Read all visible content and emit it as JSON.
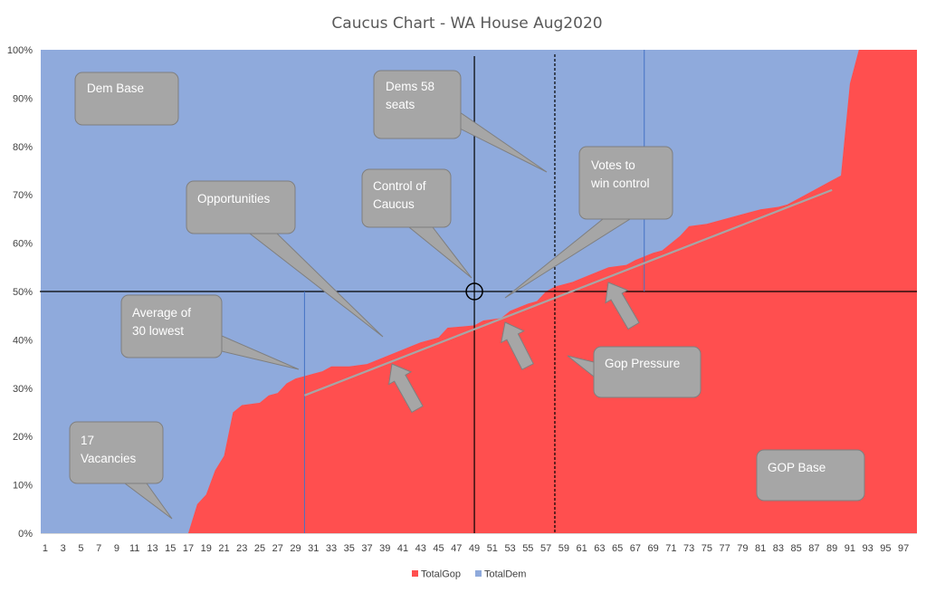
{
  "chart_data": {
    "type": "area",
    "title": "Caucus Chart - WA House Aug2020",
    "xlabel": "",
    "ylabel": "",
    "x_range": [
      1,
      98
    ],
    "ylim": [
      0,
      100
    ],
    "y_ticks": [
      "0%",
      "10%",
      "20%",
      "30%",
      "40%",
      "50%",
      "60%",
      "70%",
      "80%",
      "90%",
      "100%"
    ],
    "x_ticks": [
      "1",
      "3",
      "5",
      "7",
      "9",
      "11",
      "13",
      "15",
      "17",
      "19",
      "21",
      "23",
      "25",
      "27",
      "29",
      "31",
      "33",
      "35",
      "37",
      "39",
      "41",
      "43",
      "45",
      "47",
      "49",
      "51",
      "53",
      "55",
      "57",
      "59",
      "61",
      "63",
      "65",
      "67",
      "69",
      "71",
      "73",
      "75",
      "77",
      "79",
      "81",
      "83",
      "85",
      "87",
      "89",
      "91",
      "93",
      "95",
      "97"
    ],
    "stacked_to": 100,
    "series": [
      {
        "name": "TotalGop",
        "color": "#ff4f4f",
        "points": [
          [
            1,
            0
          ],
          [
            17,
            0
          ],
          [
            18,
            6
          ],
          [
            19,
            8
          ],
          [
            20,
            13
          ],
          [
            21,
            16
          ],
          [
            22,
            25
          ],
          [
            23,
            26.5
          ],
          [
            25,
            27
          ],
          [
            26,
            28.5
          ],
          [
            27,
            29
          ],
          [
            28,
            31
          ],
          [
            29,
            32
          ],
          [
            30,
            32.5
          ],
          [
            31,
            33
          ],
          [
            32,
            33.5
          ],
          [
            33,
            34.5
          ],
          [
            35,
            34.5
          ],
          [
            37,
            35
          ],
          [
            39,
            36.5
          ],
          [
            41,
            38
          ],
          [
            43,
            39.5
          ],
          [
            45,
            40.5
          ],
          [
            46,
            42.5
          ],
          [
            49,
            43
          ],
          [
            50,
            44
          ],
          [
            52,
            44.5
          ],
          [
            53,
            46
          ],
          [
            55,
            47.5
          ],
          [
            56,
            48
          ],
          [
            57,
            50
          ],
          [
            58,
            51
          ],
          [
            60,
            52
          ],
          [
            62,
            53.5
          ],
          [
            64,
            55
          ],
          [
            66,
            55.5
          ],
          [
            67,
            56.5
          ],
          [
            69,
            58
          ],
          [
            70,
            58.5
          ],
          [
            71,
            60
          ],
          [
            72,
            61.5
          ],
          [
            73,
            63.5
          ],
          [
            75,
            64
          ],
          [
            77,
            65
          ],
          [
            79,
            66
          ],
          [
            81,
            67
          ],
          [
            83,
            67.5
          ],
          [
            84,
            68
          ],
          [
            86,
            70
          ],
          [
            88,
            72
          ],
          [
            89,
            73
          ],
          [
            90,
            74
          ],
          [
            91,
            93
          ],
          [
            92,
            100
          ],
          [
            98,
            100
          ]
        ]
      },
      {
        "name": "TotalDem",
        "color": "#8faadc",
        "fill_to": 100
      }
    ],
    "reference_lines": [
      {
        "axis": "y",
        "value": 50
      },
      {
        "axis": "x",
        "value": 49
      },
      {
        "axis": "x",
        "value": 58,
        "style": "dashed"
      },
      {
        "axis": "x",
        "value": 30,
        "color": "#4472c4"
      },
      {
        "axis": "x",
        "value": 68,
        "color": "#4472c4"
      }
    ],
    "trendline": {
      "from": [
        30,
        28.5
      ],
      "to": [
        89,
        71
      ]
    },
    "legend": {
      "position": "bottom",
      "entries": [
        "TotalGop",
        "TotalDem"
      ]
    },
    "grid": false,
    "annotations": [
      {
        "id": "dem-base",
        "text": [
          "Dem Base"
        ]
      },
      {
        "id": "dems-58",
        "text": [
          "Dems 58",
          "seats"
        ]
      },
      {
        "id": "opportunities",
        "text": [
          "Opportunities"
        ]
      },
      {
        "id": "control",
        "text": [
          "Control of",
          "Caucus"
        ]
      },
      {
        "id": "votes",
        "text": [
          "Votes to",
          "win control"
        ]
      },
      {
        "id": "average",
        "text": [
          "Average of",
          "30 lowest"
        ]
      },
      {
        "id": "gop-pressure",
        "text": [
          "Gop Pressure"
        ]
      },
      {
        "id": "vacancies",
        "text": [
          "17",
          "Vacancies"
        ]
      },
      {
        "id": "gop-base",
        "text": [
          "GOP Base"
        ]
      }
    ]
  }
}
